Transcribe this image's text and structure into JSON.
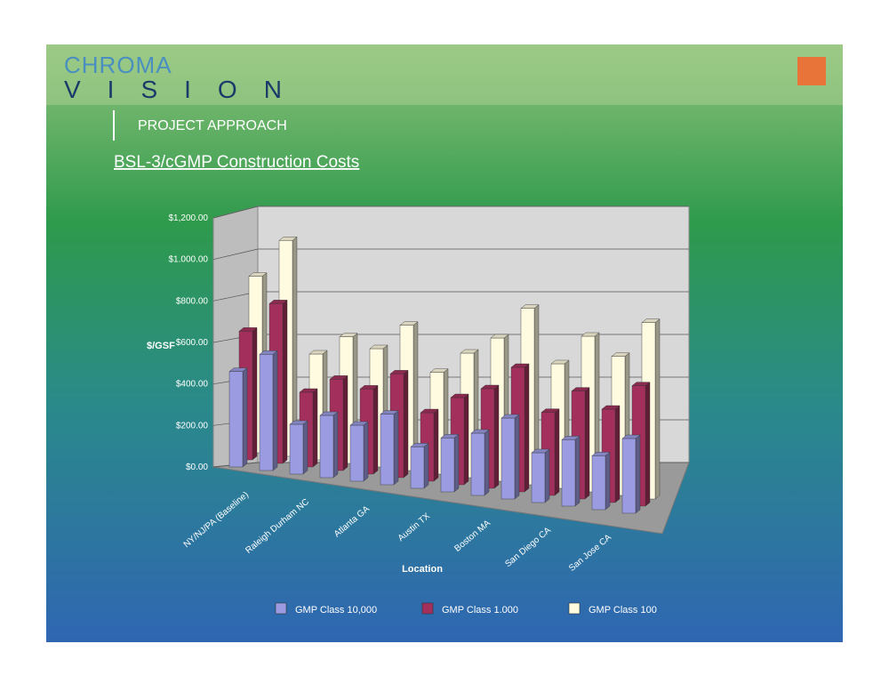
{
  "header": {
    "logo_top": "CHROMA",
    "logo_bottom": "VISION",
    "section": "PROJECT APPROACH"
  },
  "chart_data": {
    "type": "bar3d",
    "title": "BSL-3/cGMP Construction Costs",
    "y_label": "$/GSF",
    "x_label": "Location",
    "categories": [
      "NY/NJ/PA (Baseline)",
      null,
      "Raleigh Durham NC",
      null,
      "Atlanta GA",
      null,
      "Austin TX",
      null,
      "Boston MA",
      null,
      "San Diego CA",
      null,
      "San Jose CA",
      null
    ],
    "series": [
      {
        "name": "GMP Class 10,000",
        "color": "#9b9be2",
        "values": [
          460,
          560,
          240,
          300,
          270,
          340,
          200,
          260,
          300,
          390,
          240,
          320,
          260,
          360
        ]
      },
      {
        "name": "GMP Class 1.000",
        "color": "#a3305c",
        "values": [
          620,
          770,
          360,
          440,
          410,
          500,
          330,
          420,
          480,
          600,
          400,
          520,
          450,
          580
        ]
      },
      {
        "name": "GMP Class 100",
        "color": "#fffbe0",
        "values": [
          850,
          1040,
          510,
          610,
          570,
          700,
          490,
          600,
          690,
          850,
          600,
          750,
          670,
          850
        ]
      }
    ],
    "ylim": [
      0,
      1200
    ],
    "yticks": [
      {
        "value": 0,
        "label": "$0.00"
      },
      {
        "value": 200,
        "label": "$200.00"
      },
      {
        "value": 400,
        "label": "$400.00"
      },
      {
        "value": 600,
        "label": "$600.00"
      },
      {
        "value": 800,
        "label": "$800.00"
      },
      {
        "value": 1000,
        "label": "$1.000.00"
      },
      {
        "value": 1200,
        "label": "$1,200.00"
      }
    ],
    "grid": true,
    "legend": "bottom"
  }
}
